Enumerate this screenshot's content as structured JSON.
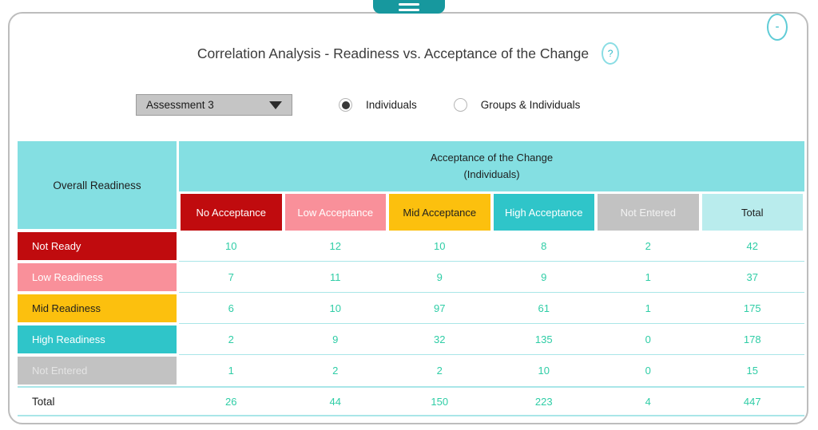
{
  "window": {
    "minimize_label": "-"
  },
  "header": {
    "title": "Correlation Analysis - Readiness vs. Acceptance of the Change",
    "help_label": "?"
  },
  "controls": {
    "assessment_dropdown": {
      "value": "Assessment 3"
    },
    "radio_options": [
      {
        "label": "Individuals",
        "selected": true
      },
      {
        "label": "Groups & Individuals",
        "selected": false
      }
    ]
  },
  "table": {
    "corner_header": "Overall Readiness",
    "span_header_line1": "Acceptance of the Change",
    "span_header_line2": "(Individuals)",
    "columns": [
      {
        "label": "No Acceptance",
        "color": "#c00b0e"
      },
      {
        "label": "Low Acceptance",
        "color": "#f9909a"
      },
      {
        "label": "Mid Acceptance",
        "color": "#fcc00e"
      },
      {
        "label": "High Acceptance",
        "color": "#2fc5c9"
      },
      {
        "label": "Not Entered",
        "color": "#c2c2c2"
      },
      {
        "label": "Total",
        "color": "#b9eced"
      }
    ],
    "rows": [
      {
        "label": "Not Ready",
        "color": "#c00b0e",
        "values": [
          "10",
          "12",
          "10",
          "8",
          "2",
          "42"
        ]
      },
      {
        "label": "Low Readiness",
        "color": "#f9909a",
        "values": [
          "7",
          "11",
          "9",
          "9",
          "1",
          "37"
        ]
      },
      {
        "label": "Mid Readiness",
        "color": "#fcc00e",
        "values": [
          "6",
          "10",
          "97",
          "61",
          "1",
          "175"
        ]
      },
      {
        "label": "High Readiness",
        "color": "#2fc5c9",
        "values": [
          "2",
          "9",
          "32",
          "135",
          "0",
          "178"
        ]
      },
      {
        "label": "Not Entered",
        "color": "#c2c2c2",
        "values": [
          "1",
          "2",
          "2",
          "10",
          "0",
          "15"
        ]
      },
      {
        "label": "Total",
        "color": "#ffffff",
        "values": [
          "26",
          "44",
          "150",
          "223",
          "4",
          "447"
        ]
      }
    ]
  },
  "colors": {
    "accent_teal": "#17989e",
    "header_teal": "#84dfe2",
    "total_header_teal": "#b9eced",
    "value_text": "#2fcda6",
    "row_divider": "#a9e6e8",
    "outline_teal": "#5fccd6",
    "frame_border": "#bdbdbd"
  }
}
